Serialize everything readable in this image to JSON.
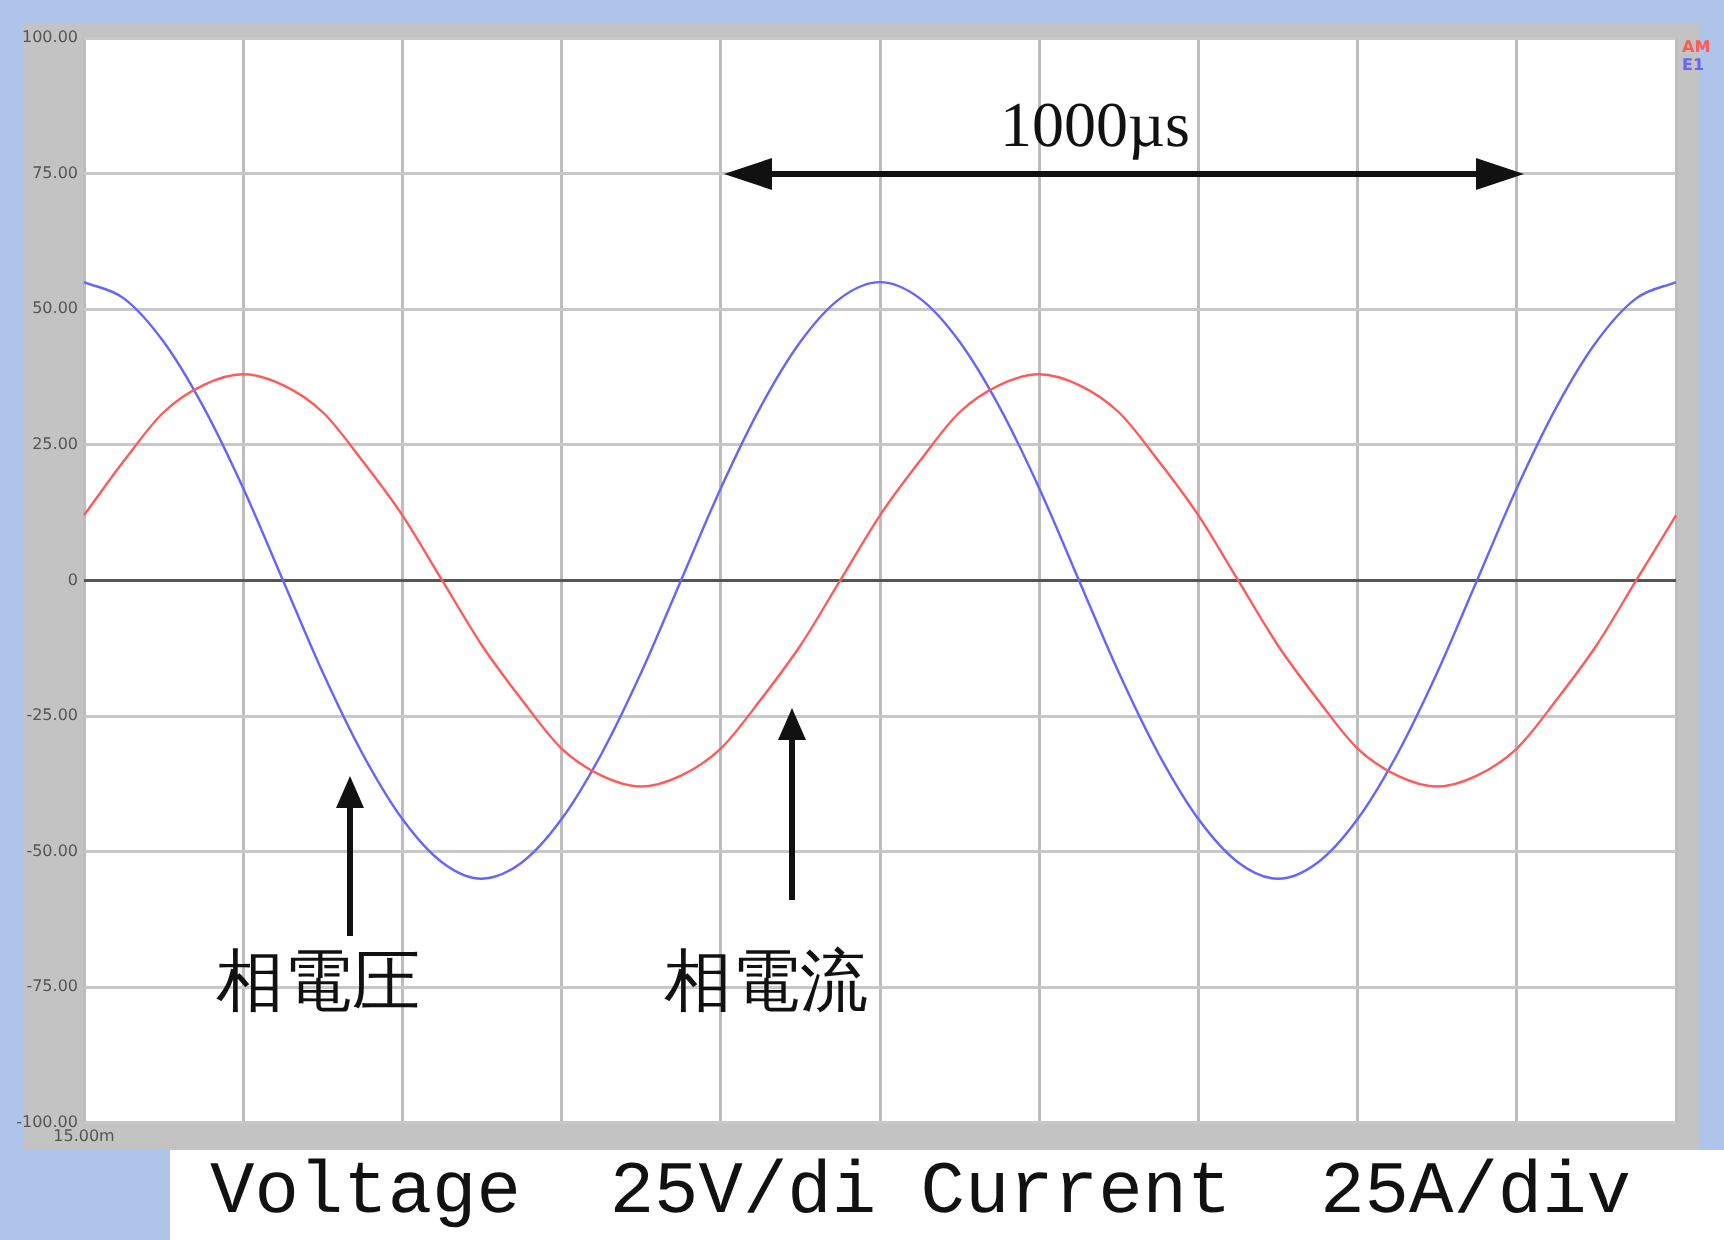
{
  "chart_data": {
    "type": "line",
    "categories": [
      "15.00m",
      null,
      null,
      null,
      null,
      null,
      null,
      null,
      null,
      null,
      null,
      null,
      null,
      null,
      null,
      null,
      null,
      null,
      null,
      null,
      null,
      null,
      null,
      null,
      null,
      null,
      null,
      null,
      null,
      null,
      null,
      null,
      null,
      null,
      null,
      null,
      null,
      null,
      null,
      null,
      null
    ],
    "series": [
      {
        "name": "AM",
        "color": "#ff5a5a",
        "values": [
          12,
          22,
          31,
          36,
          38,
          36,
          31,
          22,
          12,
          0,
          -12,
          -22,
          -31,
          -36,
          -38,
          -36,
          -31,
          -22,
          -12,
          0,
          12,
          22,
          31,
          36,
          38,
          36,
          31,
          22,
          12,
          0,
          -12,
          -22,
          -31,
          -36,
          -38,
          -36,
          -31,
          -22,
          -12,
          0,
          12
        ]
      },
      {
        "name": "E1",
        "color": "#6464ff",
        "values": [
          55,
          52,
          44,
          32,
          17,
          0,
          -17,
          -32,
          -44,
          -52,
          -55,
          -52,
          -44,
          -32,
          -17,
          0,
          17,
          32,
          44,
          52,
          55,
          52,
          44,
          32,
          17,
          0,
          -17,
          -32,
          -44,
          -52,
          -55,
          -52,
          -44,
          -32,
          -17,
          0,
          17,
          32,
          44,
          52,
          55
        ]
      }
    ],
    "ylim": [
      -100,
      100
    ],
    "yticks": [
      {
        "value": -100,
        "label": "-100.00"
      },
      {
        "value": -75,
        "label": "-75.00"
      },
      {
        "value": -50,
        "label": "-50.00"
      },
      {
        "value": -25,
        "label": "-25.00"
      },
      0,
      {
        "value": 25,
        "label": "25.00"
      },
      {
        "value": 50,
        "label": "50.00"
      },
      {
        "value": 75,
        "label": "75.00"
      },
      {
        "value": 100,
        "label": "100.00"
      }
    ],
    "grid": true,
    "legend": "top right",
    "marker": "none",
    "line_style": "solid",
    "annotations": [
      "1000µs",
      "相電圧",
      "相電流",
      "Voltage  25V/di Current  25A/div"
    ]
  }
}
